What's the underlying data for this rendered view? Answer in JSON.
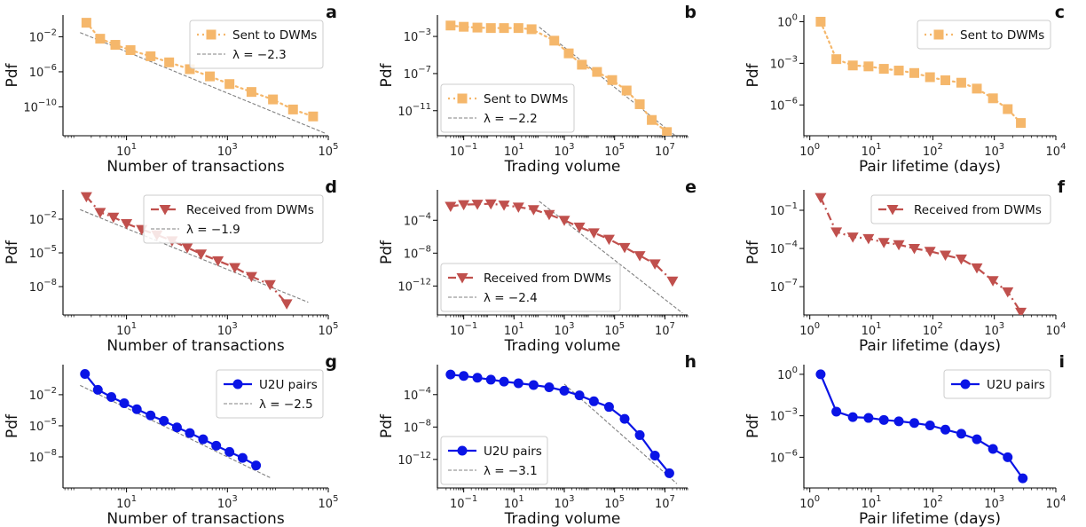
{
  "chart_data": [
    {
      "panel": "a",
      "type": "line",
      "xlabel": "Number of transactions",
      "ylabel": "Pdf",
      "xscale": "log",
      "yscale": "log",
      "xlim": [
        0.55,
        100000
      ],
      "ylim": [
        5e-14,
        3
      ],
      "xticks": [
        {
          "v": 10,
          "e": "1"
        },
        {
          "v": 1000,
          "e": "3"
        },
        {
          "v": 100000,
          "e": "5"
        }
      ],
      "yticks": [
        {
          "v": 0.01,
          "e": "−2"
        },
        {
          "v": 1e-06,
          "e": "−6"
        },
        {
          "v": 1e-10,
          "e": "−10"
        }
      ],
      "legend_position": "top-right",
      "series": [
        {
          "name": "Sent to DWMs",
          "style": "dwm_sent",
          "x": [
            1.6,
            3,
            6,
            12,
            30,
            70,
            180,
            450,
            1100,
            3000,
            8000,
            20000,
            50000
          ],
          "y": [
            0.4,
            0.006,
            0.0012,
            0.0003,
            6e-05,
            1.2e-05,
            2e-06,
            3e-07,
            4e-08,
            5e-09,
            7e-10,
            5e-11,
            8e-12
          ]
        },
        {
          "name": "λ = −2.3",
          "style": "fit",
          "x": [
            1.2,
            85000
          ],
          "y": [
            0.03,
            1e-13
          ]
        }
      ]
    },
    {
      "panel": "b",
      "type": "line",
      "xlabel": "Trading volume",
      "ylabel": "Pdf",
      "xscale": "log",
      "yscale": "log",
      "xlim": [
        0.009,
        80000000
      ],
      "ylim": [
        2e-14,
        0.2
      ],
      "xticks": [
        {
          "v": 0.1,
          "e": "−1"
        },
        {
          "v": 10,
          "e": "1"
        },
        {
          "v": 1000,
          "e": "3"
        },
        {
          "v": 100000,
          "e": "5"
        },
        {
          "v": 10000000,
          "e": "7"
        }
      ],
      "yticks": [
        {
          "v": 0.001,
          "e": "−3"
        },
        {
          "v": 1e-07,
          "e": "−7"
        },
        {
          "v": 1e-11,
          "e": "−11"
        }
      ],
      "legend_position": "bottom-left",
      "series": [
        {
          "name": "Sent to DWMs",
          "style": "dwm_sent",
          "x": [
            0.03,
            0.1,
            0.35,
            1.2,
            4,
            15,
            50,
            400,
            1500,
            5000,
            20000,
            80000,
            300000,
            1000000,
            3000000,
            12000000
          ],
          "y": [
            0.015,
            0.011,
            0.009,
            0.008,
            0.008,
            0.008,
            0.006,
            0.00035,
            1.5e-05,
            9e-07,
            1.5e-07,
            2e-08,
            1.5e-09,
            5e-11,
            1e-12,
            5e-14
          ]
        },
        {
          "name": "λ = −2.2",
          "style": "fit",
          "x": [
            100,
            30000000
          ],
          "y": [
            0.01,
            1.5e-14
          ]
        }
      ]
    },
    {
      "panel": "c",
      "type": "line",
      "xlabel": "Pair lifetime (days)",
      "ylabel": "Pdf",
      "xscale": "log",
      "yscale": "log",
      "xlim": [
        0.8,
        10000
      ],
      "ylim": [
        6e-09,
        3
      ],
      "xticks": [
        {
          "v": 1,
          "e": "0"
        },
        {
          "v": 10,
          "e": "1"
        },
        {
          "v": 100,
          "e": "2"
        },
        {
          "v": 1000,
          "e": "3"
        },
        {
          "v": 10000,
          "e": "4"
        }
      ],
      "yticks": [
        {
          "v": 1,
          "e": "0"
        },
        {
          "v": 0.001,
          "e": "−3"
        },
        {
          "v": 1e-06,
          "e": "−6"
        }
      ],
      "legend_position": "top-right",
      "series": [
        {
          "name": "Sent to DWMs",
          "style": "dwm_sent",
          "x": [
            1.5,
            2.7,
            5,
            9,
            16,
            28,
            50,
            90,
            160,
            290,
            520,
            950,
            1650,
            2700
          ],
          "y": [
            1,
            0.002,
            0.0007,
            0.0006,
            0.0004,
            0.0003,
            0.0002,
            0.0001,
            6e-05,
            4e-05,
            1.5e-05,
            3e-06,
            5e-07,
            5e-08
          ]
        }
      ]
    },
    {
      "panel": "d",
      "type": "line",
      "xlabel": "Number of transactions",
      "ylabel": "Pdf",
      "xscale": "log",
      "yscale": "log",
      "xlim": [
        0.55,
        100000
      ],
      "ylim": [
        3e-11,
        4
      ],
      "xticks": [
        {
          "v": 10,
          "e": "1"
        },
        {
          "v": 1000,
          "e": "3"
        },
        {
          "v": 100000,
          "e": "5"
        }
      ],
      "yticks": [
        {
          "v": 0.01,
          "e": "−2"
        },
        {
          "v": 1e-05,
          "e": "−5"
        },
        {
          "v": 1e-08,
          "e": "−8"
        }
      ],
      "legend_position": "top-right",
      "series": [
        {
          "name": "Received from DWMs",
          "style": "dwm_recv",
          "x": [
            1.6,
            3,
            5.5,
            10,
            20,
            40,
            80,
            160,
            300,
            650,
            1400,
            3000,
            7000,
            15000
          ],
          "y": [
            1,
            0.04,
            0.015,
            0.004,
            0.0012,
            0.0004,
            0.00012,
            3e-05,
            8e-06,
            2e-06,
            5e-07,
            8e-08,
            1.5e-08,
            3e-10
          ]
        },
        {
          "name": "λ = −1.9",
          "style": "fit",
          "x": [
            1.2,
            40000
          ],
          "y": [
            0.07,
            4e-10
          ]
        }
      ]
    },
    {
      "panel": "e",
      "type": "line",
      "xlabel": "Trading volume",
      "ylabel": "Pdf",
      "xscale": "log",
      "yscale": "log",
      "xlim": [
        0.009,
        80000000
      ],
      "ylim": [
        3e-16,
        0.5
      ],
      "xticks": [
        {
          "v": 0.1,
          "e": "−1"
        },
        {
          "v": 10,
          "e": "1"
        },
        {
          "v": 1000,
          "e": "3"
        },
        {
          "v": 100000,
          "e": "5"
        },
        {
          "v": 10000000,
          "e": "7"
        }
      ],
      "yticks": [
        {
          "v": 0.0001,
          "e": "−4"
        },
        {
          "v": 1e-08,
          "e": "−8"
        },
        {
          "v": 1e-12,
          "e": "−12"
        }
      ],
      "legend_position": "bottom-left",
      "series": [
        {
          "name": "Received from DWMs",
          "style": "dwm_recv",
          "x": [
            0.03,
            0.1,
            0.35,
            1.2,
            4,
            15,
            60,
            250,
            1000,
            4000,
            15000,
            60000,
            250000,
            1000000,
            4000000,
            20000000
          ],
          "y": [
            0.005,
            0.008,
            0.009,
            0.01,
            0.007,
            0.004,
            0.002,
            0.0005,
            0.0001,
            1.5e-05,
            3e-06,
            5e-07,
            5e-08,
            5e-09,
            5e-10,
            4e-12
          ]
        },
        {
          "name": "λ = −2.4",
          "style": "fit",
          "x": [
            100,
            50000000
          ],
          "y": [
            0.02,
            5e-16
          ]
        }
      ]
    },
    {
      "panel": "f",
      "type": "line",
      "xlabel": "Pair lifetime (days)",
      "ylabel": "Pdf",
      "xscale": "log",
      "yscale": "log",
      "xlim": [
        0.8,
        10000
      ],
      "ylim": [
        6e-10,
        4
      ],
      "xticks": [
        {
          "v": 1,
          "e": "0"
        },
        {
          "v": 10,
          "e": "1"
        },
        {
          "v": 100,
          "e": "2"
        },
        {
          "v": 1000,
          "e": "3"
        },
        {
          "v": 10000,
          "e": "4"
        }
      ],
      "yticks": [
        {
          "v": 0.1,
          "e": "−1"
        },
        {
          "v": 0.0001,
          "e": "−4"
        },
        {
          "v": 1e-07,
          "e": "−7"
        }
      ],
      "legend_position": "top-right",
      "series": [
        {
          "name": "Received from DWMs",
          "style": "dwm_recv",
          "x": [
            1.5,
            2.7,
            5,
            9,
            16,
            28,
            50,
            90,
            160,
            290,
            520,
            950,
            1650,
            2700
          ],
          "y": [
            1,
            0.002,
            0.0008,
            0.0006,
            0.0003,
            0.0002,
            0.0001,
            6e-05,
            3e-05,
            1.5e-05,
            3e-06,
            3e-07,
            4e-08,
            1e-09
          ]
        }
      ]
    },
    {
      "panel": "g",
      "type": "line",
      "xlabel": "Number of transactions",
      "ylabel": "Pdf",
      "xscale": "log",
      "yscale": "log",
      "xlim": [
        0.55,
        100000
      ],
      "ylim": [
        1e-11,
        8
      ],
      "xticks": [
        {
          "v": 10,
          "e": "1"
        },
        {
          "v": 1000,
          "e": "3"
        },
        {
          "v": 100000,
          "e": "5"
        }
      ],
      "yticks": [
        {
          "v": 0.01,
          "e": "−2"
        },
        {
          "v": 1e-05,
          "e": "−5"
        },
        {
          "v": 1e-08,
          "e": "−8"
        }
      ],
      "legend_position": "top-right",
      "series": [
        {
          "name": "U2U pairs",
          "style": "u2u",
          "x": [
            1.5,
            2.7,
            5,
            9,
            16,
            30,
            55,
            100,
            180,
            330,
            600,
            1100,
            2000,
            3700
          ],
          "y": [
            1,
            0.03,
            0.006,
            0.0015,
            0.0004,
            0.0001,
            3e-05,
            7e-06,
            2e-06,
            5e-07,
            1.2e-07,
            3e-08,
            8e-09,
            1.5e-09
          ]
        },
        {
          "name": "λ = −2.5",
          "style": "fit",
          "x": [
            1.2,
            7000
          ],
          "y": [
            0.08,
            1e-10
          ]
        }
      ]
    },
    {
      "panel": "h",
      "type": "line",
      "xlabel": "Trading volume",
      "ylabel": "Pdf",
      "xscale": "log",
      "yscale": "log",
      "xlim": [
        0.009,
        80000000
      ],
      "ylim": [
        3e-16,
        0.5
      ],
      "xticks": [
        {
          "v": 0.1,
          "e": "−1"
        },
        {
          "v": 10,
          "e": "1"
        },
        {
          "v": 1000,
          "e": "3"
        },
        {
          "v": 100000,
          "e": "5"
        },
        {
          "v": 10000000,
          "e": "7"
        }
      ],
      "yticks": [
        {
          "v": 0.0001,
          "e": "−4"
        },
        {
          "v": 1e-08,
          "e": "−8"
        },
        {
          "v": 1e-12,
          "e": "−12"
        }
      ],
      "legend_position": "bottom-left",
      "series": [
        {
          "name": "U2U pairs",
          "style": "u2u",
          "x": [
            0.03,
            0.1,
            0.35,
            1.2,
            4,
            15,
            60,
            250,
            1000,
            4000,
            15000,
            60000,
            250000,
            1000000,
            4000000,
            15000000
          ],
          "y": [
            0.03,
            0.02,
            0.012,
            0.007,
            0.004,
            0.0025,
            0.0015,
            0.0008,
            0.0003,
            8e-05,
            1.5e-05,
            3e-06,
            1e-07,
            1e-09,
            3e-12,
            2e-14
          ]
        },
        {
          "name": "λ = −3.1",
          "style": "fit",
          "x": [
            1000,
            30000000
          ],
          "y": [
            0.002,
            1e-15
          ]
        }
      ]
    },
    {
      "panel": "i",
      "type": "line",
      "xlabel": "Pair lifetime (days)",
      "ylabel": "Pdf",
      "xscale": "log",
      "yscale": "log",
      "xlim": [
        0.8,
        10000
      ],
      "ylim": [
        6e-09,
        5
      ],
      "xticks": [
        {
          "v": 1,
          "e": "0"
        },
        {
          "v": 10,
          "e": "1"
        },
        {
          "v": 100,
          "e": "2"
        },
        {
          "v": 1000,
          "e": "3"
        },
        {
          "v": 10000,
          "e": "4"
        }
      ],
      "yticks": [
        {
          "v": 1,
          "e": "0"
        },
        {
          "v": 0.001,
          "e": "−3"
        },
        {
          "v": 1e-06,
          "e": "−6"
        }
      ],
      "legend_position": "top-right",
      "series": [
        {
          "name": "U2U pairs",
          "style": "u2u",
          "x": [
            1.5,
            2.7,
            5,
            9,
            16,
            28,
            50,
            90,
            160,
            290,
            520,
            950,
            1650,
            2900
          ],
          "y": [
            1,
            0.002,
            0.0008,
            0.0007,
            0.0005,
            0.0004,
            0.0003,
            0.0002,
            0.0001,
            5e-05,
            2e-05,
            4e-06,
            1e-06,
            3e-08
          ]
        }
      ]
    }
  ],
  "styles": {
    "dwm_sent": {
      "color": "#f5b76b",
      "marker": "square",
      "dash": "2,4"
    },
    "dwm_recv": {
      "color": "#c0504d",
      "marker": "triangle-down",
      "dash": "9,4,2,4"
    },
    "u2u": {
      "color": "#0a14e6",
      "marker": "circle",
      "dash": ""
    },
    "fit": {
      "color": "#808080",
      "marker": "none",
      "dash": "4,2"
    }
  }
}
